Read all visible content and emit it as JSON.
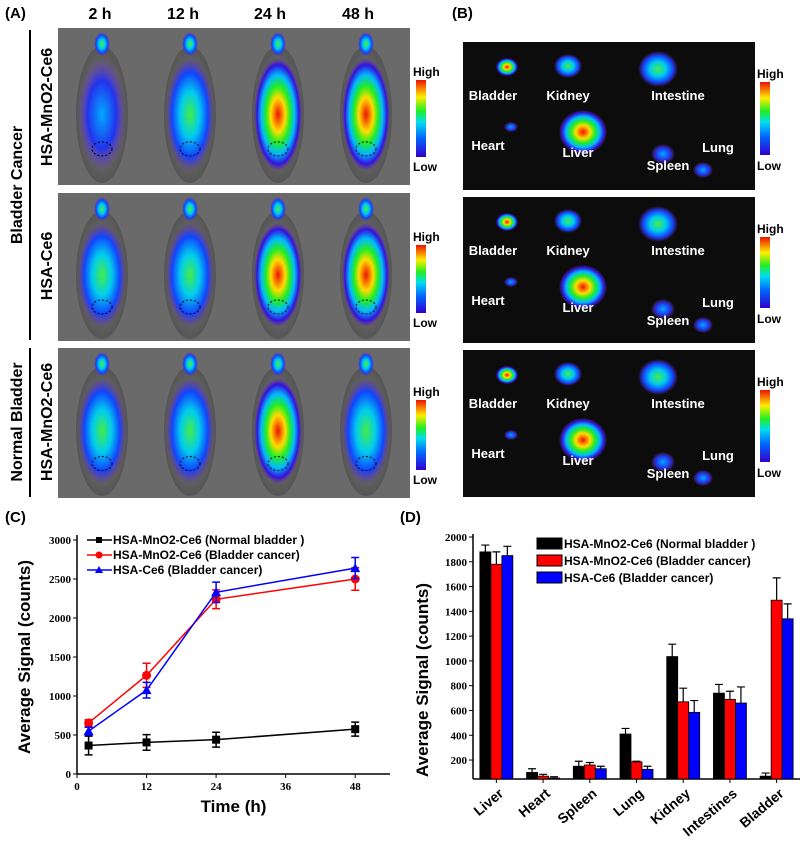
{
  "panel_a": {
    "label": "(A)",
    "time_headers": [
      "2 h",
      "12 h",
      "24 h",
      "48 h"
    ],
    "group_labels": [
      "Bladder Cancer",
      "Normal Bladder"
    ],
    "row_labels": [
      "HSA-MnO2-Ce6",
      "HSA-Ce6",
      "HSA-MnO2-Ce6"
    ],
    "colorbar_high": "High",
    "colorbar_low": "Low"
  },
  "panel_b": {
    "label": "(B)",
    "organs": [
      [
        "Bladder",
        "Kidney",
        "Intestine",
        "Heart",
        "Liver",
        "Spleen",
        "Lung"
      ],
      [
        "Bladder",
        "Kidney",
        "Intestine",
        "Heart",
        "Liver",
        "Spleen",
        "Lung"
      ],
      [
        "Bladder",
        "Kidney",
        "Intestine",
        "Heart",
        "Liver",
        "Spleen",
        "Lung"
      ]
    ],
    "colorbar_high": "High",
    "colorbar_low": "Low"
  },
  "chart_data": [
    {
      "panel": "(C)",
      "type": "line",
      "xlabel": "Time (h)",
      "ylabel": "Average Signal (counts)",
      "xlim": [
        0,
        54
      ],
      "ylim": [
        0,
        3000
      ],
      "xticks": [
        0,
        12,
        24,
        36,
        48
      ],
      "yticks": [
        0,
        500,
        1000,
        1500,
        2000,
        2500,
        3000
      ],
      "legend": "top-left",
      "colors": [
        "#000000",
        "#ff0000",
        "#0000ff"
      ],
      "x": [
        2,
        12,
        24,
        48
      ],
      "series": [
        {
          "name": "HSA-MnO2-Ce6 (Normal bladder )",
          "marker": "square",
          "values": [
            365,
            405,
            440,
            575
          ],
          "errors": [
            120,
            100,
            95,
            90
          ]
        },
        {
          "name": "HSA-MnO2-Ce6 (Bladder cancer)",
          "marker": "circle",
          "values": [
            655,
            1265,
            2240,
            2500
          ],
          "errors": [
            40,
            155,
            120,
            145
          ]
        },
        {
          "name": "HSA-Ce6 (Bladder cancer)",
          "marker": "triangle",
          "values": [
            550,
            1075,
            2330,
            2640
          ],
          "errors": [
            50,
            100,
            130,
            135
          ]
        }
      ]
    },
    {
      "panel": "(D)",
      "type": "bar",
      "xlabel": "",
      "ylabel": "Average Signal (counts)",
      "ylim": [
        47,
        2000
      ],
      "yticks": [
        200,
        400,
        600,
        800,
        1000,
        1200,
        1400,
        1600,
        1800,
        2000
      ],
      "legend": "top-right",
      "colors": [
        "#000000",
        "#ff0000",
        "#0000ff"
      ],
      "categories": [
        "Liver",
        "Heart",
        "Spleen",
        "Lung",
        "Kidney",
        "Intestines",
        "Bladder"
      ],
      "series": [
        {
          "name": "HSA-MnO2-Ce6 (Normal bladder )",
          "values": [
            1880,
            100,
            150,
            410,
            1035,
            740,
            70
          ],
          "errors": [
            55,
            30,
            40,
            45,
            100,
            70,
            25
          ]
        },
        {
          "name": "HSA-MnO2-Ce6 (Bladder cancer)",
          "values": [
            1780,
            70,
            160,
            185,
            670,
            690,
            1490
          ],
          "errors": [
            100,
            15,
            20,
            5,
            110,
            65,
            180
          ]
        },
        {
          "name": "HSA-Ce6 (Bladder cancer)",
          "values": [
            1850,
            55,
            130,
            125,
            585,
            660,
            1340
          ],
          "errors": [
            75,
            10,
            20,
            25,
            95,
            130,
            120
          ]
        }
      ]
    }
  ]
}
